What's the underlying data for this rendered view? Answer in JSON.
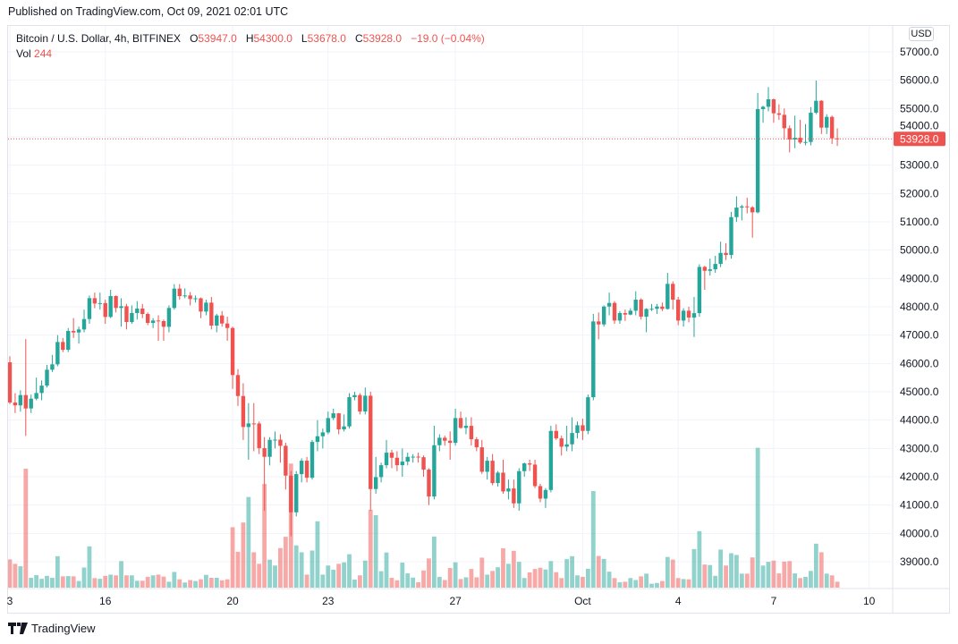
{
  "published": "Published on TradingView.com, Oct 09, 2021 02:01 UTC",
  "legend": {
    "symbol": "Bitcoin / U.S. Dollar, 4h, BITFINEX",
    "o_label": "O",
    "o_value": "53947.0",
    "h_label": "H",
    "h_value": "54300.0",
    "l_label": "L",
    "l_value": "53678.0",
    "c_label": "C",
    "c_value": "53928.0",
    "change": "−19.0 (−0.04%)",
    "vol_label": "Vol",
    "vol_value": "244"
  },
  "currency": "USD",
  "footer_brand": "TradingView",
  "colors": {
    "up": "#26a69a",
    "down": "#ef5350",
    "grid": "#f0f3fa",
    "text": "#131722"
  },
  "chart_data": {
    "type": "candlestick",
    "title": "Bitcoin / U.S. Dollar, 4h, BITFINEX",
    "interval": "4h",
    "ylim": [
      38200,
      57800
    ],
    "grid": true,
    "price_ticks": [
      "57000.0",
      "56000.0",
      "55000.0",
      "54000.0",
      "53000.0",
      "52000.0",
      "51000.0",
      "50000.0",
      "49000.0",
      "48000.0",
      "47000.0",
      "46000.0",
      "45000.0",
      "44000.0",
      "43000.0",
      "42000.0",
      "41000.0",
      "40000.0",
      "39000.0"
    ],
    "x_ticks": [
      "3",
      "16",
      "20",
      "23",
      "27",
      "Oct",
      "4",
      "7",
      "10"
    ],
    "last_price": "53928.0",
    "candle_fields": [
      "open",
      "high",
      "low",
      "close",
      "volume"
    ],
    "candles": [
      [
        46041,
        46250,
        44560,
        44620,
        1150
      ],
      [
        44620,
        44950,
        44250,
        44520,
        970
      ],
      [
        44520,
        45050,
        44300,
        44883,
        870
      ],
      [
        44883,
        46860,
        43440,
        44410,
        4840
      ],
      [
        44410,
        44900,
        44250,
        44756,
        400
      ],
      [
        44756,
        45500,
        44700,
        44956,
        510
      ],
      [
        44956,
        45400,
        44700,
        45218,
        360
      ],
      [
        45218,
        45950,
        45150,
        45778,
        480
      ],
      [
        45778,
        46300,
        45700,
        45968,
        400
      ],
      [
        45968,
        47000,
        45900,
        46757,
        1280
      ],
      [
        46757,
        46900,
        46400,
        46483,
        460
      ],
      [
        46483,
        47250,
        46400,
        47147,
        470
      ],
      [
        47147,
        47600,
        46900,
        47094,
        460
      ],
      [
        47094,
        47300,
        46700,
        47200,
        270
      ],
      [
        47200,
        47900,
        47100,
        47568,
        820
      ],
      [
        47568,
        48400,
        47400,
        48305,
        1680
      ],
      [
        48305,
        48500,
        47950,
        48116,
        390
      ],
      [
        48116,
        48500,
        47900,
        48130,
        360
      ],
      [
        48130,
        48250,
        47400,
        47642,
        480
      ],
      [
        47642,
        48600,
        47600,
        48379,
        530
      ],
      [
        48379,
        48400,
        47800,
        47958,
        500
      ],
      [
        47958,
        48300,
        47300,
        48020,
        1080
      ],
      [
        48020,
        48100,
        47200,
        47463,
        500
      ],
      [
        47463,
        48050,
        47400,
        47779,
        500
      ],
      [
        47779,
        48200,
        47550,
        47937,
        280
      ],
      [
        47937,
        48100,
        47600,
        47747,
        280
      ],
      [
        47747,
        47800,
        47350,
        47431,
        440
      ],
      [
        47431,
        47600,
        47250,
        47516,
        500
      ],
      [
        47516,
        47700,
        46800,
        47495,
        530
      ],
      [
        47495,
        47550,
        46800,
        47294,
        450
      ],
      [
        47294,
        48050,
        47100,
        47958,
        240
      ],
      [
        47958,
        48800,
        47900,
        48642,
        640
      ],
      [
        48642,
        48800,
        48250,
        48379,
        340
      ],
      [
        48379,
        48650,
        48300,
        48400,
        210
      ],
      [
        48400,
        48520,
        48050,
        48274,
        310
      ],
      [
        48274,
        48400,
        48150,
        48300,
        270
      ],
      [
        48300,
        48330,
        47600,
        47831,
        340
      ],
      [
        47831,
        48250,
        47700,
        48147,
        520
      ],
      [
        48147,
        48350,
        47200,
        47337,
        400
      ],
      [
        47337,
        47750,
        47100,
        47695,
        400
      ],
      [
        47695,
        47850,
        47300,
        47410,
        300
      ],
      [
        47410,
        47650,
        46800,
        47252,
        340
      ],
      [
        47252,
        47300,
        45100,
        45590,
        2460
      ],
      [
        45590,
        45800,
        44500,
        44850,
        1460
      ],
      [
        44850,
        45300,
        43300,
        43756,
        2650
      ],
      [
        43756,
        44600,
        42600,
        43882,
        3690
      ],
      [
        43882,
        44600,
        42900,
        43880,
        1440
      ],
      [
        43880,
        43950,
        42800,
        43008,
        970
      ],
      [
        43008,
        43400,
        40800,
        42703,
        4220
      ],
      [
        42703,
        43400,
        42400,
        43303,
        1140
      ],
      [
        43303,
        43600,
        43000,
        43310,
        900
      ],
      [
        43310,
        43500,
        42500,
        43092,
        1610
      ],
      [
        43092,
        43200,
        41550,
        42040,
        2070
      ],
      [
        42040,
        42200,
        39900,
        40744,
        5050
      ],
      [
        40744,
        42200,
        40600,
        42092,
        1720
      ],
      [
        42092,
        42650,
        41800,
        42566,
        1440
      ],
      [
        42566,
        42700,
        41800,
        41966,
        530
      ],
      [
        41966,
        43300,
        41900,
        43229,
        1510
      ],
      [
        43229,
        44000,
        42900,
        43430,
        2700
      ],
      [
        43430,
        43700,
        43000,
        43566,
        530
      ],
      [
        43566,
        44300,
        43500,
        44072,
        900
      ],
      [
        44072,
        44400,
        44000,
        44240,
        730
      ],
      [
        44240,
        44250,
        43500,
        43672,
        970
      ],
      [
        43672,
        44200,
        43600,
        43777,
        1030
      ],
      [
        43777,
        44950,
        43700,
        44809,
        1360
      ],
      [
        44809,
        45000,
        44700,
        44882,
        330
      ],
      [
        44882,
        44950,
        44200,
        44303,
        500
      ],
      [
        44303,
        45150,
        44200,
        44861,
        1100
      ],
      [
        44861,
        45000,
        40800,
        41566,
        3170
      ],
      [
        41566,
        42700,
        41400,
        41987,
        2950
      ],
      [
        41987,
        42500,
        41800,
        42408,
        670
      ],
      [
        42408,
        43300,
        42300,
        42850,
        1430
      ],
      [
        42850,
        42950,
        42300,
        42671,
        400
      ],
      [
        42671,
        42900,
        42200,
        42408,
        300
      ],
      [
        42408,
        43000,
        42000,
        42534,
        1020
      ],
      [
        42534,
        42850,
        42400,
        42703,
        580
      ],
      [
        42703,
        42800,
        42500,
        42710,
        410
      ],
      [
        42710,
        42850,
        42500,
        42690,
        220
      ],
      [
        42690,
        42750,
        42000,
        42250,
        700
      ],
      [
        42250,
        42300,
        41000,
        41302,
        1190
      ],
      [
        41302,
        43800,
        41200,
        43113,
        2080
      ],
      [
        43113,
        43500,
        42900,
        43377,
        440
      ],
      [
        43377,
        43450,
        43100,
        43272,
        310
      ],
      [
        43272,
        43600,
        42600,
        43197,
        800
      ],
      [
        43197,
        44400,
        43100,
        44072,
        1030
      ],
      [
        44072,
        44300,
        43700,
        43724,
        350
      ],
      [
        43724,
        44100,
        43500,
        43797,
        420
      ],
      [
        43797,
        44100,
        43100,
        43324,
        760
      ],
      [
        43324,
        43400,
        42900,
        43039,
        420
      ],
      [
        43039,
        43300,
        42100,
        42176,
        1220
      ],
      [
        42176,
        42700,
        41900,
        42565,
        530
      ],
      [
        42565,
        42800,
        41700,
        41776,
        680
      ],
      [
        41776,
        42200,
        41650,
        42144,
        830
      ],
      [
        42144,
        42600,
        41400,
        41481,
        1600
      ],
      [
        41481,
        41900,
        41200,
        41586,
        970
      ],
      [
        41586,
        41900,
        40900,
        41060,
        1500
      ],
      [
        41060,
        42300,
        40800,
        42197,
        1050
      ],
      [
        42197,
        42500,
        42000,
        42471,
        390
      ],
      [
        42471,
        42600,
        42200,
        42429,
        620
      ],
      [
        42429,
        42600,
        41600,
        41670,
        760
      ],
      [
        41670,
        41750,
        41100,
        41228,
        810
      ],
      [
        41228,
        41600,
        40900,
        41533,
        740
      ],
      [
        41533,
        43800,
        41450,
        43618,
        1080
      ],
      [
        43618,
        43850,
        43300,
        43355,
        630
      ],
      [
        43355,
        43450,
        42750,
        43060,
        390
      ],
      [
        43060,
        43800,
        42900,
        43144,
        1160
      ],
      [
        43144,
        44100,
        42900,
        43544,
        1280
      ],
      [
        43544,
        43950,
        43350,
        43818,
        500
      ],
      [
        43818,
        44050,
        43300,
        43618,
        440
      ],
      [
        43618,
        44900,
        43500,
        44808,
        770
      ],
      [
        44808,
        47750,
        44700,
        47483,
        3930
      ],
      [
        47483,
        47800,
        46850,
        47378,
        1290
      ],
      [
        47378,
        48050,
        47300,
        48009,
        1170
      ],
      [
        48009,
        48500,
        47700,
        48136,
        650
      ],
      [
        48136,
        48200,
        47400,
        47514,
        390
      ],
      [
        47514,
        47850,
        47400,
        47778,
        220
      ],
      [
        47778,
        47900,
        47500,
        47725,
        240
      ],
      [
        47725,
        47950,
        47700,
        47862,
        390
      ],
      [
        47862,
        48550,
        47700,
        48252,
        310
      ],
      [
        48252,
        48300,
        47550,
        47651,
        460
      ],
      [
        47651,
        47950,
        47100,
        47925,
        570
      ],
      [
        47925,
        48100,
        47850,
        47930,
        160
      ],
      [
        47930,
        48100,
        47750,
        48009,
        190
      ],
      [
        48009,
        48150,
        47850,
        47925,
        270
      ],
      [
        47925,
        49200,
        47900,
        48810,
        1250
      ],
      [
        48810,
        48900,
        47900,
        48252,
        1140
      ],
      [
        48252,
        48350,
        47350,
        47514,
        390
      ],
      [
        47514,
        47950,
        47300,
        47862,
        350
      ],
      [
        47862,
        48000,
        47450,
        47620,
        340
      ],
      [
        47620,
        48350,
        46933,
        47776,
        1570
      ],
      [
        47776,
        49500,
        47650,
        49408,
        2300
      ],
      [
        49408,
        49450,
        48600,
        49271,
        940
      ],
      [
        49271,
        49700,
        49100,
        49324,
        920
      ],
      [
        49324,
        49800,
        49200,
        49513,
        480
      ],
      [
        49513,
        50300,
        49400,
        49903,
        1550
      ],
      [
        49903,
        50250,
        49650,
        49829,
        900
      ],
      [
        49829,
        51350,
        49700,
        51166,
        1400
      ],
      [
        51166,
        51900,
        51000,
        51503,
        1330
      ],
      [
        51503,
        51600,
        51050,
        51545,
        570
      ],
      [
        51545,
        51850,
        51300,
        51513,
        570
      ],
      [
        51513,
        51550,
        50440,
        51335,
        1230
      ],
      [
        51335,
        55550,
        51300,
        54978,
        5690
      ],
      [
        54978,
        55100,
        54500,
        55062,
        900
      ],
      [
        55062,
        55757,
        54900,
        55326,
        1050
      ],
      [
        55326,
        55350,
        54500,
        54831,
        1100
      ],
      [
        54831,
        55150,
        54600,
        54778,
        580
      ],
      [
        54778,
        55000,
        53900,
        54304,
        1060
      ],
      [
        54304,
        54400,
        53450,
        53904,
        1080
      ],
      [
        53904,
        54750,
        53600,
        53967,
        580
      ],
      [
        53967,
        54600,
        53750,
        53799,
        390
      ],
      [
        53799,
        54450,
        53700,
        53820,
        440
      ],
      [
        53820,
        55050,
        53700,
        54852,
        680
      ],
      [
        54852,
        55989,
        54800,
        55273,
        1790
      ],
      [
        55273,
        55300,
        54100,
        54326,
        1440
      ],
      [
        54326,
        54800,
        54100,
        54705,
        570
      ],
      [
        54705,
        54750,
        53750,
        53947,
        500
      ],
      [
        53947,
        54300,
        53678,
        53928,
        244
      ]
    ]
  }
}
